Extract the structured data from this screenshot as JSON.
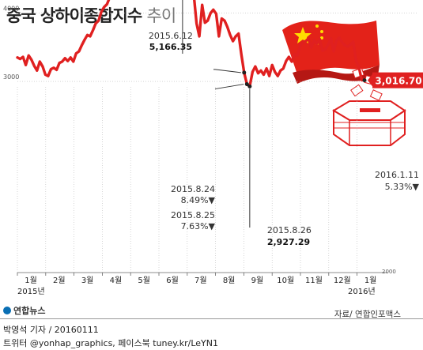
{
  "header": {
    "title_bold": "중국 상하이종합지수",
    "title_light": "추이"
  },
  "chart_data": {
    "type": "line",
    "title": "중국 상하이종합지수 추이",
    "ylim": [
      2600,
      5500
    ],
    "y_ticks": [
      "5000",
      "4000",
      "3000",
      "2000"
    ],
    "x_ticks": [
      "1월",
      "2월",
      "3월",
      "4월",
      "5월",
      "6월",
      "7월",
      "8월",
      "9월",
      "10월",
      "11월",
      "12월",
      "1월"
    ],
    "x_tick_years": {
      "first": "2015년",
      "last": "2016년"
    },
    "series": [
      {
        "values": [
          3350,
          3330,
          3360,
          3240,
          3380,
          3320,
          3230,
          3160,
          3290,
          3220,
          3100,
          3080,
          3180,
          3200,
          3170,
          3270,
          3290,
          3340,
          3300,
          3350,
          3290,
          3410,
          3440,
          3530,
          3610,
          3680,
          3660,
          3750,
          3850,
          3890,
          4020,
          4090,
          4130,
          4230,
          4230,
          4320,
          4440,
          4290,
          4400,
          4480,
          4520,
          4430,
          4300,
          4310,
          4230,
          4330,
          4490,
          4570,
          4670,
          4750,
          4930,
          4830,
          4650,
          4910,
          4950,
          5000,
          5070,
          4980,
          5100,
          5166,
          5050,
          4880,
          4480,
          4280,
          3850,
          3660,
          4120,
          3860,
          3890,
          4000,
          4050,
          3990,
          3660,
          3920,
          3890,
          3800,
          3680,
          3590,
          3660,
          3700,
          3400,
          3130,
          2960,
          2927,
          3140,
          3220,
          3120,
          3160,
          3100,
          3190,
          3080,
          3240,
          3140,
          3080,
          3160,
          3190,
          3300,
          3360,
          3290,
          3400,
          3380,
          3520,
          3580,
          3590,
          3630,
          3500,
          3610,
          3550,
          3620,
          3450,
          3470,
          3540,
          3630,
          3440,
          3600,
          3640,
          3570,
          3530,
          3510,
          3540,
          3580,
          3300,
          3210,
          3020,
          3017
        ]
      }
    ],
    "annotations": [
      {
        "id": "peak",
        "date": "2015.6.12",
        "value": "5,166.35"
      },
      {
        "id": "a824",
        "date": "2015.8.24",
        "change": "8.49%▼"
      },
      {
        "id": "a825",
        "date": "2015.8.25",
        "change": "7.63%▼"
      },
      {
        "id": "a826",
        "date": "2015.8.26",
        "value": "2,927.29"
      },
      {
        "id": "last",
        "date": "2016.1.11",
        "change": "5.33%▼",
        "value": "3,016.70"
      }
    ],
    "colors": {
      "line": "#e02020",
      "badge": "#e02020",
      "grid": "#bbbbbb",
      "axis": "#666666"
    }
  },
  "footer": {
    "credit": "박영석 기자 / 20160111",
    "twitter": "트위터 @yonhap_graphics, 페이스북 tuney.kr/LeYN1",
    "source": "자료/ 연합인포맥스",
    "logo": "연합뉴스"
  }
}
